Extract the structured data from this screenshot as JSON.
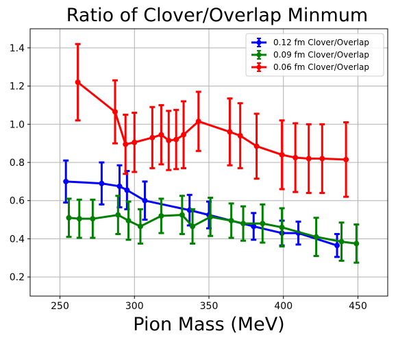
{
  "chart_data": {
    "type": "line",
    "title": "Ratio of Clover/Overlap Minmum",
    "xlabel": "Pion Mass (MeV)",
    "ylabel": "",
    "xlim": [
      230,
      470
    ],
    "ylim": [
      0.1,
      1.5
    ],
    "xticks": [
      250,
      300,
      350,
      400,
      450
    ],
    "yticks": [
      0.2,
      0.4,
      0.6,
      0.8,
      1.0,
      1.2,
      1.4
    ],
    "xtick_labels": [
      "250",
      "300",
      "350",
      "400",
      "450"
    ],
    "ytick_labels": [
      "0.2",
      "0.4",
      "0.6",
      "0.8",
      "1.0",
      "1.2",
      "1.4"
    ],
    "grid": true,
    "legend_position": "top-right",
    "series": [
      {
        "name": "0.12 fm Clover/Overlap",
        "color": "#0000ff",
        "points": [
          {
            "x": 254,
            "y": 0.7,
            "err": 0.11
          },
          {
            "x": 278,
            "y": 0.69,
            "err": 0.11
          },
          {
            "x": 290,
            "y": 0.675,
            "err": 0.11
          },
          {
            "x": 295,
            "y": 0.655,
            "err": 0.1
          },
          {
            "x": 307,
            "y": 0.6,
            "err": 0.1
          },
          {
            "x": 337,
            "y": 0.55,
            "err": 0.08
          },
          {
            "x": 350,
            "y": 0.525,
            "err": 0.07
          },
          {
            "x": 380,
            "y": 0.465,
            "err": 0.07
          },
          {
            "x": 399,
            "y": 0.43,
            "err": 0.065
          },
          {
            "x": 410,
            "y": 0.43,
            "err": 0.06
          },
          {
            "x": 436,
            "y": 0.365,
            "err": 0.06
          }
        ]
      },
      {
        "name": "0.09 fm Clover/Overlap",
        "color": "#008000",
        "points": [
          {
            "x": 256,
            "y": 0.51,
            "err": 0.1
          },
          {
            "x": 263,
            "y": 0.505,
            "err": 0.1
          },
          {
            "x": 272,
            "y": 0.505,
            "err": 0.1
          },
          {
            "x": 289,
            "y": 0.525,
            "err": 0.1
          },
          {
            "x": 296,
            "y": 0.495,
            "err": 0.1
          },
          {
            "x": 304,
            "y": 0.465,
            "err": 0.09
          },
          {
            "x": 318,
            "y": 0.52,
            "err": 0.09
          },
          {
            "x": 332,
            "y": 0.525,
            "err": 0.1
          },
          {
            "x": 339,
            "y": 0.465,
            "err": 0.09
          },
          {
            "x": 351,
            "y": 0.515,
            "err": 0.1
          },
          {
            "x": 365,
            "y": 0.495,
            "err": 0.09
          },
          {
            "x": 373,
            "y": 0.48,
            "err": 0.09
          },
          {
            "x": 386,
            "y": 0.48,
            "err": 0.1
          },
          {
            "x": 399,
            "y": 0.46,
            "err": 0.1
          },
          {
            "x": 422,
            "y": 0.41,
            "err": 0.1
          },
          {
            "x": 439,
            "y": 0.385,
            "err": 0.1
          },
          {
            "x": 449,
            "y": 0.375,
            "err": 0.1
          }
        ]
      },
      {
        "name": "0.06 fm Clover/Overlap",
        "color": "#ff0000",
        "points": [
          {
            "x": 262,
            "y": 1.22,
            "err": 0.2
          },
          {
            "x": 287,
            "y": 1.065,
            "err": 0.165
          },
          {
            "x": 294,
            "y": 0.895,
            "err": 0.155
          },
          {
            "x": 300,
            "y": 0.905,
            "err": 0.155
          },
          {
            "x": 312,
            "y": 0.93,
            "err": 0.16
          },
          {
            "x": 318,
            "y": 0.945,
            "err": 0.155
          },
          {
            "x": 323,
            "y": 0.915,
            "err": 0.155
          },
          {
            "x": 328,
            "y": 0.92,
            "err": 0.155
          },
          {
            "x": 333,
            "y": 0.945,
            "err": 0.175
          },
          {
            "x": 343,
            "y": 1.015,
            "err": 0.155
          },
          {
            "x": 364,
            "y": 0.96,
            "err": 0.175
          },
          {
            "x": 371,
            "y": 0.94,
            "err": 0.17
          },
          {
            "x": 382,
            "y": 0.885,
            "err": 0.17
          },
          {
            "x": 399,
            "y": 0.84,
            "err": 0.18
          },
          {
            "x": 408,
            "y": 0.825,
            "err": 0.18
          },
          {
            "x": 417,
            "y": 0.82,
            "err": 0.18
          },
          {
            "x": 426,
            "y": 0.82,
            "err": 0.18
          },
          {
            "x": 442,
            "y": 0.815,
            "err": 0.195
          }
        ]
      }
    ]
  }
}
